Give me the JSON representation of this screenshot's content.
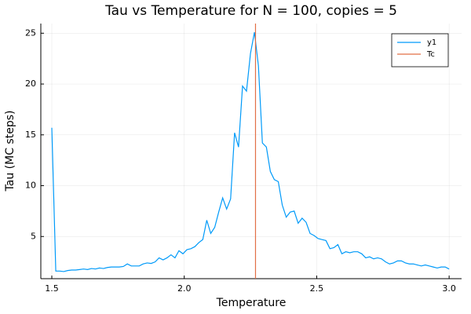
{
  "chart_data": {
    "type": "line",
    "title": "Tau vs Temperature for N = 100, copies = 5",
    "x_label": "Temperature",
    "y_label": "Tau (MC steps)",
    "x": [
      1.5,
      1.515,
      1.53,
      1.545,
      1.56,
      1.575,
      1.59,
      1.605,
      1.62,
      1.635,
      1.65,
      1.665,
      1.68,
      1.695,
      1.71,
      1.725,
      1.74,
      1.755,
      1.77,
      1.785,
      1.8,
      1.815,
      1.83,
      1.845,
      1.86,
      1.875,
      1.89,
      1.905,
      1.92,
      1.935,
      1.95,
      1.965,
      1.98,
      1.995,
      2.01,
      2.025,
      2.04,
      2.055,
      2.07,
      2.085,
      2.1,
      2.115,
      2.13,
      2.145,
      2.16,
      2.175,
      2.19,
      2.205,
      2.22,
      2.235,
      2.25,
      2.265,
      2.28,
      2.295,
      2.31,
      2.325,
      2.34,
      2.355,
      2.37,
      2.385,
      2.4,
      2.415,
      2.43,
      2.445,
      2.46,
      2.475,
      2.49,
      2.505,
      2.52,
      2.535,
      2.55,
      2.565,
      2.58,
      2.595,
      2.61,
      2.625,
      2.64,
      2.655,
      2.67,
      2.685,
      2.7,
      2.715,
      2.73,
      2.745,
      2.76,
      2.775,
      2.79,
      2.805,
      2.82,
      2.835,
      2.85,
      2.865,
      2.88,
      2.895,
      2.91,
      2.925,
      2.94,
      2.955,
      2.97,
      2.985,
      3.0
    ],
    "series": [
      {
        "name": "y1",
        "color": "#009af9",
        "values": [
          15.7,
          1.6,
          1.6,
          1.55,
          1.65,
          1.7,
          1.7,
          1.75,
          1.8,
          1.75,
          1.85,
          1.8,
          1.9,
          1.85,
          1.95,
          2.0,
          2.0,
          2.0,
          2.05,
          2.3,
          2.1,
          2.1,
          2.1,
          2.3,
          2.4,
          2.35,
          2.5,
          2.9,
          2.7,
          2.9,
          3.2,
          2.9,
          3.6,
          3.3,
          3.7,
          3.8,
          4.0,
          4.4,
          4.7,
          6.6,
          5.3,
          5.9,
          7.4,
          8.8,
          7.7,
          8.7,
          15.2,
          13.8,
          19.8,
          19.3,
          23.0,
          25.1,
          21.8,
          14.2,
          13.8,
          11.4,
          10.6,
          10.4,
          8.1,
          6.9,
          7.4,
          7.5,
          6.3,
          6.8,
          6.4,
          5.3,
          5.1,
          4.8,
          4.7,
          4.6,
          3.8,
          3.9,
          4.2,
          3.3,
          3.5,
          3.4,
          3.5,
          3.5,
          3.3,
          2.9,
          3.0,
          2.8,
          2.9,
          2.8,
          2.5,
          2.3,
          2.4,
          2.6,
          2.6,
          2.4,
          2.3,
          2.3,
          2.2,
          2.1,
          2.2,
          2.1,
          2.0,
          1.9,
          2.0,
          2.0,
          1.8
        ]
      }
    ],
    "vlines": [
      {
        "name": "Tc",
        "color": "#e26f46",
        "x": 2.269
      }
    ],
    "xlim": [
      1.4585,
      3.047
    ],
    "ylim": [
      0.85,
      25.95
    ],
    "xticks": [
      1.5,
      {
        "value": 2,
        "label": "2.0"
      },
      2.5,
      {
        "value": 3,
        "label": "3.0"
      }
    ],
    "yticks": [
      5,
      10,
      15,
      20,
      25
    ],
    "grid": true,
    "legend": "top-right"
  }
}
